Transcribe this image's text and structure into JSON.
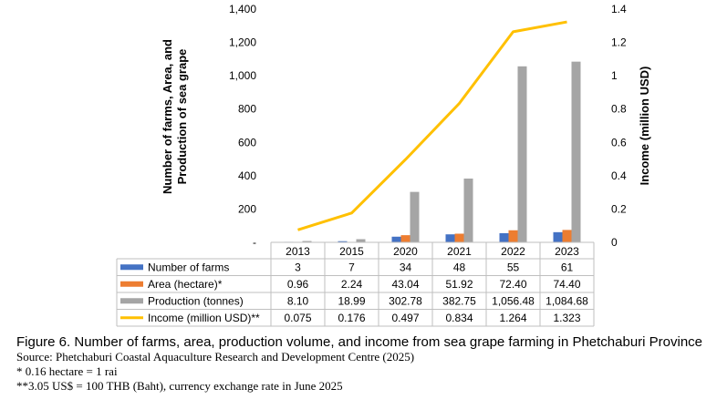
{
  "chart_data": {
    "type": "bar",
    "categories": [
      "2013",
      "2015",
      "2020",
      "2021",
      "2022",
      "2023"
    ],
    "series": [
      {
        "name": "Number of  farms",
        "kind": "bar",
        "axis": "left",
        "color": "#4472C4",
        "values": [
          3,
          7,
          34,
          48,
          55,
          61
        ],
        "labels": [
          "3",
          "7",
          "34",
          "48",
          "55",
          "61"
        ]
      },
      {
        "name": "Area (hectare)*",
        "kind": "bar",
        "axis": "left",
        "color": "#ED7D31",
        "values": [
          0.96,
          2.24,
          43.04,
          51.92,
          72.4,
          74.4
        ],
        "labels": [
          "0.96",
          "2.24",
          "43.04",
          "51.92",
          "72.40",
          "74.40"
        ]
      },
      {
        "name": "Production (tonnes)",
        "kind": "bar",
        "axis": "left",
        "color": "#A5A5A5",
        "values": [
          8.1,
          18.99,
          302.78,
          382.75,
          1056.48,
          1084.68
        ],
        "labels": [
          "8.10",
          "18.99",
          "302.78",
          "382.75",
          "1,056.48",
          "1,084.68"
        ]
      },
      {
        "name": "Income (million USD)**",
        "kind": "line",
        "axis": "right",
        "color": "#FFC000",
        "values": [
          0.075,
          0.176,
          0.497,
          0.834,
          1.264,
          1.323
        ],
        "labels": [
          "0.075",
          "0.176",
          "0.497",
          "0.834",
          "1.264",
          "1.323"
        ]
      }
    ],
    "ylabel": "Number of farms, Area,  and Production of sea grape",
    "y2label": "Income (million USD)",
    "ylim": [
      0,
      1400
    ],
    "y2lim": [
      0,
      1.4
    ],
    "yticks": [
      0,
      200,
      400,
      600,
      800,
      1000,
      1200,
      1400
    ],
    "ytick_labels": [
      "-",
      "200",
      "400",
      "600",
      "800",
      "1,000",
      "1,200",
      "1,400"
    ],
    "y2ticks": [
      0,
      0.2,
      0.4,
      0.6,
      0.8,
      1.0,
      1.2,
      1.4
    ],
    "y2tick_labels": [
      "0",
      "0.2",
      "0.4",
      "0.6",
      "0.8",
      "1",
      "1.2",
      "1.4"
    ],
    "grid": false,
    "legend": "data-table-below"
  },
  "caption": {
    "title": "Figure 6. Number of farms, area, production volume, and income from sea grape farming in Phetchaburi Province",
    "source": "Source: Phetchaburi Coastal Aquaculture Research and Development Centre (2025)",
    "note1": "* 0.16 hectare = 1 rai",
    "note2": "**3.05 US$ = 100 THB (Baht), currency exchange rate in June 2025"
  }
}
